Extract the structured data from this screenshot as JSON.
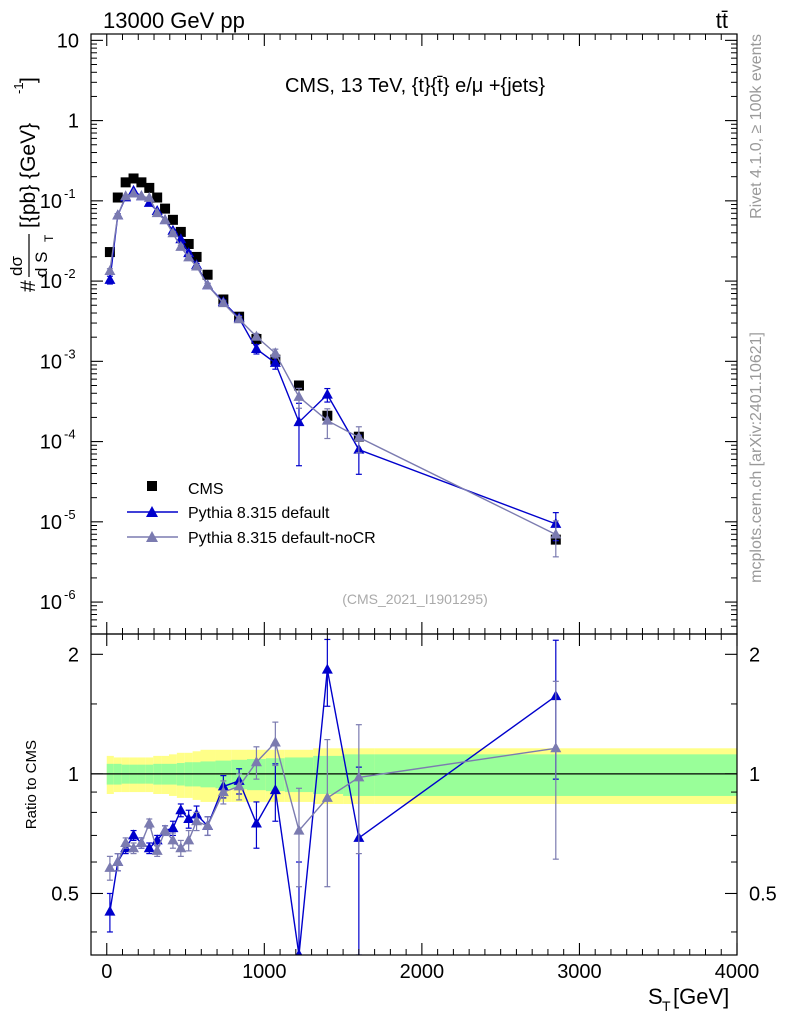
{
  "header": {
    "left": "13000 GeV pp",
    "right": "tt̄"
  },
  "side_labels": {
    "top": "Rivet 4.1.0, ≥ 100k events",
    "bottom": "mcplots.cern.ch [arXiv:2401.10621]"
  },
  "chart_data": {
    "type": "scatter",
    "title": "CMS, 13 TeV, {t}{t̄} e/μ +{jets}",
    "analysis_id": "(CMS_2021_I1901295)",
    "xlabel": "S_T [GeV]",
    "xlabel_main": "S",
    "xlabel_sub": "T",
    "xlabel_unit": "[GeV]",
    "ylabel": "#dσ/dS_T [{pb} {GeV}^-1]",
    "ylabel_parts": {
      "hash": "#",
      "num": "dσ",
      "den": "d S",
      "den_sub": "T",
      "unit": "[{pb} {GeV}",
      "exp": "-1",
      "close": "]"
    },
    "ratio_ylabel": "Ratio to CMS",
    "xlim": [
      -100,
      4000
    ],
    "ylim": [
      4e-07,
      12
    ],
    "ratio_ylim": [
      0.35,
      2.25
    ],
    "x_ticks": [
      0,
      1000,
      2000,
      3000,
      4000
    ],
    "x_tick_labels": [
      "0",
      "1000",
      "2000",
      "3000",
      "4000"
    ],
    "y_ticks": [
      1e-06,
      1e-05,
      0.0001,
      0.001,
      0.01,
      0.1,
      1,
      10
    ],
    "y_tick_labels": [
      {
        "base": "10",
        "exp": "-6"
      },
      {
        "base": "10",
        "exp": "-5"
      },
      {
        "base": "10",
        "exp": "-4"
      },
      {
        "base": "10",
        "exp": "-3"
      },
      {
        "base": "10",
        "exp": "-2"
      },
      {
        "base": "10",
        "exp": "-1"
      },
      {
        "base": "1",
        "exp": ""
      },
      {
        "base": "10",
        "exp": ""
      }
    ],
    "ratio_ticks": [
      0.5,
      1,
      2
    ],
    "ratio_tick_labels": [
      "0.5",
      "1",
      "2"
    ],
    "legend": [
      {
        "name": "CMS",
        "color": "#000000",
        "marker": "square"
      },
      {
        "name": "Pythia 8.315 default",
        "color": "#0000cc",
        "marker": "triangle"
      },
      {
        "name": "Pythia 8.315 default-noCR",
        "color": "#7b7bb0",
        "marker": "triangle"
      }
    ],
    "colors": {
      "data": "#000000",
      "default": "#0000cc",
      "nocr": "#7b7bb0",
      "band_inner": "#99ff99",
      "band_outer": "#ffff88"
    },
    "x": [
      20,
      70,
      120,
      170,
      220,
      270,
      320,
      370,
      420,
      470,
      520,
      570,
      640,
      740,
      840,
      950,
      1070,
      1220,
      1400,
      1600,
      2850
    ],
    "bin_edges": [
      0,
      45,
      95,
      145,
      195,
      245,
      295,
      345,
      395,
      445,
      495,
      545,
      595,
      690,
      790,
      890,
      1010,
      1130,
      1310,
      1500,
      1700,
      4000
    ],
    "data_values": [
      0.023,
      0.11,
      0.17,
      0.19,
      0.17,
      0.145,
      0.11,
      0.08,
      0.058,
      0.041,
      0.029,
      0.02,
      0.012,
      0.0059,
      0.0036,
      0.0019,
      0.00105,
      0.0005,
      0.00021,
      0.000115,
      6e-06
    ],
    "band_inner_halfwidth": [
      0.06,
      0.06,
      0.055,
      0.055,
      0.055,
      0.055,
      0.06,
      0.06,
      0.06,
      0.065,
      0.07,
      0.07,
      0.075,
      0.08,
      0.085,
      0.09,
      0.095,
      0.1,
      0.11,
      0.12,
      0.12
    ],
    "band_outer_halfwidth": [
      0.11,
      0.1,
      0.1,
      0.1,
      0.1,
      0.1,
      0.11,
      0.11,
      0.12,
      0.13,
      0.13,
      0.14,
      0.15,
      0.15,
      0.15,
      0.15,
      0.15,
      0.15,
      0.16,
      0.16,
      0.16
    ],
    "series": [
      {
        "name": "Pythia 8.315 default",
        "ratio": [
          0.45,
          0.6,
          0.65,
          0.7,
          0.67,
          0.65,
          0.68,
          0.72,
          0.73,
          0.81,
          0.77,
          0.79,
          0.74,
          0.93,
          0.96,
          0.75,
          0.91,
          0.35,
          1.83,
          0.69,
          1.57
        ],
        "ratio_err": [
          0.05,
          0.03,
          0.02,
          0.02,
          0.02,
          0.02,
          0.02,
          0.02,
          0.03,
          0.03,
          0.04,
          0.04,
          0.04,
          0.06,
          0.07,
          0.1,
          0.15,
          0.25,
          0.35,
          0.35,
          0.6
        ]
      },
      {
        "name": "Pythia 8.315 default-noCR",
        "ratio": [
          0.58,
          0.6,
          0.67,
          0.65,
          0.67,
          0.75,
          0.64,
          0.72,
          0.68,
          0.65,
          0.68,
          0.76,
          0.74,
          0.9,
          0.93,
          1.07,
          1.2,
          0.72,
          0.87,
          0.98,
          1.16
        ],
        "ratio_err": [
          0.04,
          0.03,
          0.02,
          0.02,
          0.02,
          0.02,
          0.02,
          0.02,
          0.03,
          0.03,
          0.04,
          0.04,
          0.04,
          0.06,
          0.07,
          0.1,
          0.15,
          0.2,
          0.35,
          0.35,
          0.55
        ]
      }
    ]
  }
}
